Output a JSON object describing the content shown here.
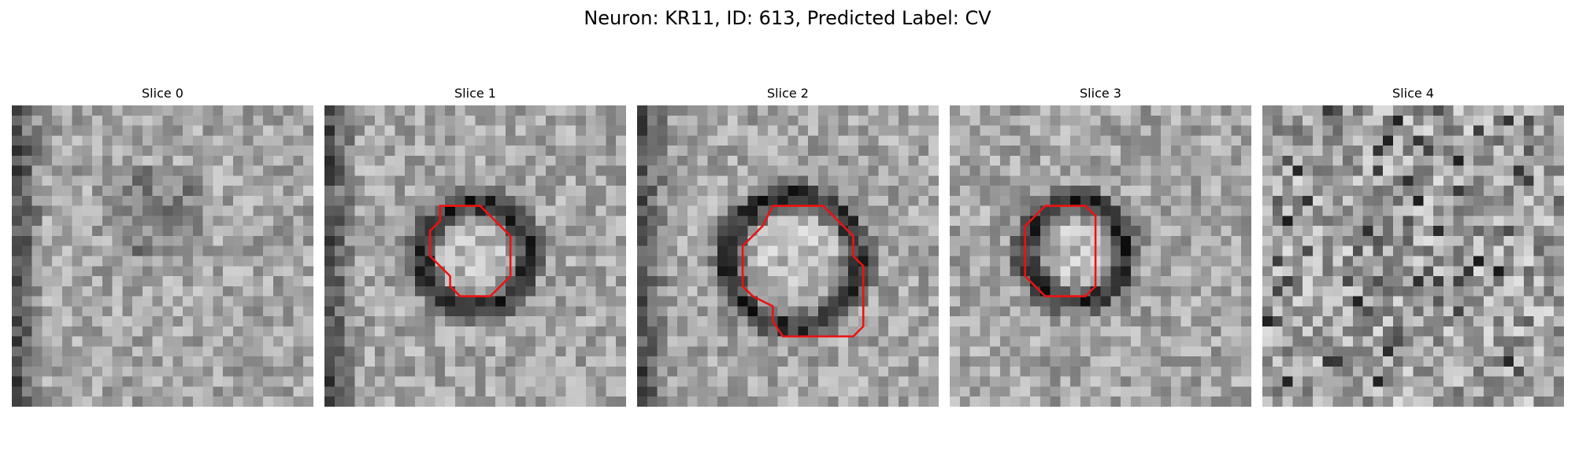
{
  "figure": {
    "title": "Neuron: KR11, ID: 613, Predicted Label: CV"
  },
  "panels": [
    {
      "title": "Slice 0",
      "roi": null,
      "dark_ring": false
    },
    {
      "title": "Slice 1",
      "roi": [
        [
          11.5,
          10
        ],
        [
          15.5,
          10
        ],
        [
          17.5,
          12
        ],
        [
          18.5,
          13
        ],
        [
          18.5,
          17
        ],
        [
          16.5,
          19
        ],
        [
          13.5,
          19
        ],
        [
          12.5,
          18
        ],
        [
          12.5,
          17
        ],
        [
          11.5,
          16
        ],
        [
          10.5,
          15
        ],
        [
          10.5,
          12.5
        ],
        [
          11.5,
          11.5
        ]
      ],
      "dark_ring": true
    },
    {
      "title": "Slice 2",
      "roi": [
        [
          13.5,
          10
        ],
        [
          18.5,
          10
        ],
        [
          19.5,
          11
        ],
        [
          21.5,
          13
        ],
        [
          21.5,
          15
        ],
        [
          22.5,
          16
        ],
        [
          22.5,
          22
        ],
        [
          21.5,
          23
        ],
        [
          14.5,
          23
        ],
        [
          13.5,
          21.5
        ],
        [
          13.5,
          20
        ],
        [
          12.5,
          19.5
        ],
        [
          11.5,
          19
        ],
        [
          10.5,
          18
        ],
        [
          10.5,
          14
        ],
        [
          11.5,
          13
        ],
        [
          12.5,
          12
        ]
      ],
      "dark_ring": true
    },
    {
      "title": "Slice 3",
      "roi": [
        [
          9.5,
          10
        ],
        [
          13.5,
          10
        ],
        [
          14.5,
          11
        ],
        [
          14.5,
          18
        ],
        [
          13.5,
          19
        ],
        [
          9.5,
          19
        ],
        [
          7.5,
          17
        ],
        [
          7.5,
          12
        ]
      ],
      "dark_ring": true
    },
    {
      "title": "Slice 4",
      "roi": null,
      "dark_ring": false
    }
  ],
  "style": {
    "roi_color": "#ee1111"
  }
}
